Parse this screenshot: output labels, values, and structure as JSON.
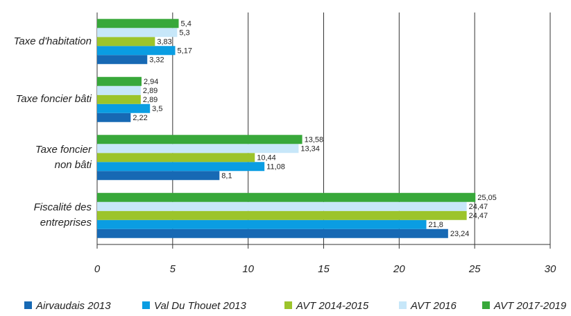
{
  "chart_data": {
    "type": "hbar",
    "categories": [
      "Taxe d'habitation",
      "Taxe foncier bâti",
      "Taxe foncier\nnon bâti",
      "Fiscalité des\nentreprises"
    ],
    "series": [
      {
        "name": "Airvaudais 2013",
        "color": "#1769b4",
        "values": [
          3.32,
          2.22,
          8.1,
          23.24
        ],
        "value_labels": [
          "3,32",
          "2,22",
          "8,1",
          "23,24"
        ]
      },
      {
        "name": "Val Du Thouet 2013",
        "color": "#0a9de2",
        "values": [
          5.17,
          3.5,
          11.08,
          21.8
        ],
        "value_labels": [
          "5,17",
          "3,5",
          "11,08",
          "21,8"
        ]
      },
      {
        "name": "AVT 2014-2015",
        "color": "#9cc42b",
        "values": [
          3.83,
          2.89,
          10.44,
          24.47
        ],
        "value_labels": [
          "3,83",
          "2,89",
          "10,44",
          "24,47"
        ]
      },
      {
        "name": "AVT 2016",
        "color": "#c7e7f9",
        "values": [
          5.3,
          2.89,
          13.34,
          24.47
        ],
        "value_labels": [
          "5,3",
          "2,89",
          "13,34",
          "24,47"
        ]
      },
      {
        "name": "AVT 2017-2019",
        "color": "#38a83a",
        "values": [
          5.4,
          2.94,
          13.58,
          25.05
        ],
        "value_labels": [
          "5,4",
          "2,94",
          "13,58",
          "25,05"
        ]
      }
    ],
    "xlim": [
      0,
      30
    ],
    "xticks": [
      0,
      5,
      10,
      15,
      20,
      25,
      30
    ],
    "grid": true
  }
}
